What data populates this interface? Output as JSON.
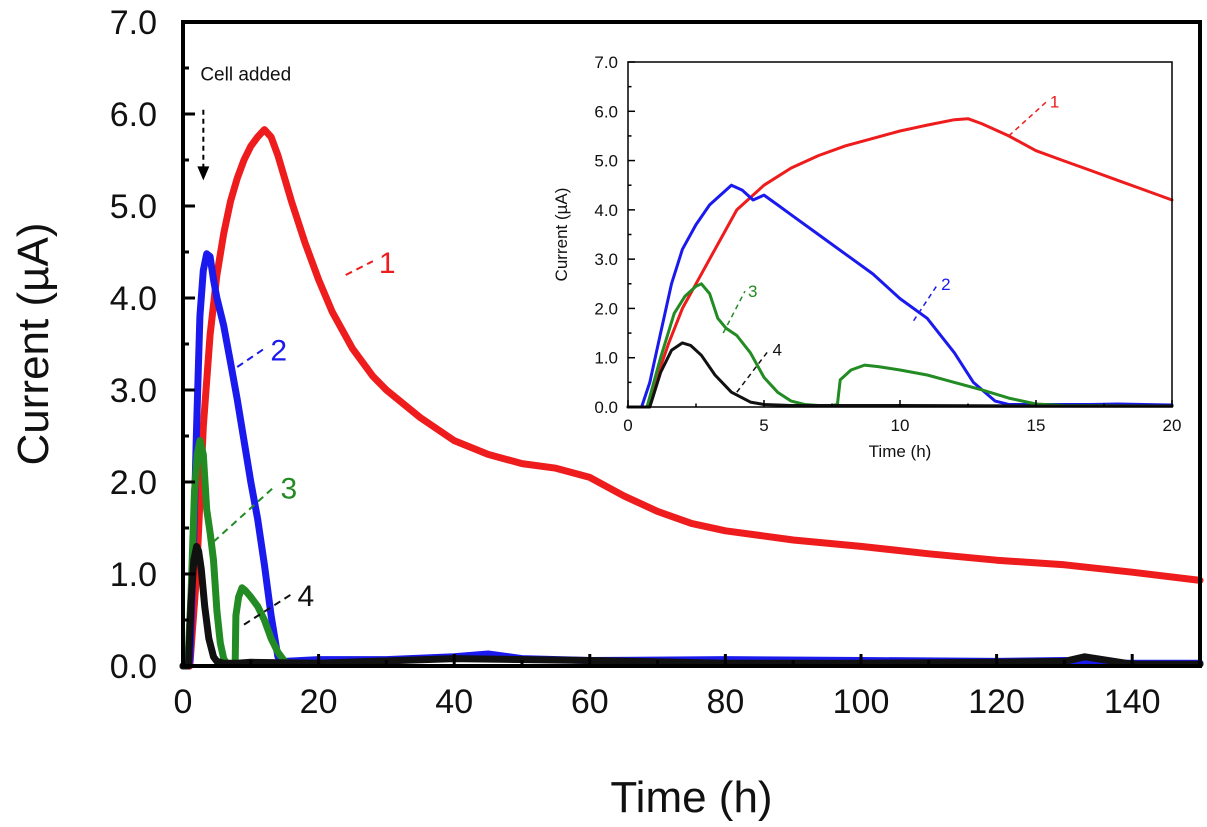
{
  "chart_data": [
    {
      "type": "line",
      "xlabel": "Time (h)",
      "ylabel": "Current (µA)",
      "xlim": [
        0,
        150
      ],
      "ylim": [
        0,
        7
      ],
      "xticks": [
        0,
        20,
        40,
        60,
        80,
        100,
        120,
        140
      ],
      "yticks": [
        0,
        1,
        2,
        3,
        4,
        5,
        6,
        7
      ],
      "xtick_labels": [
        "0",
        "20",
        "40",
        "60",
        "80",
        "100",
        "120",
        "140"
      ],
      "ytick_labels": [
        "0.0",
        "1.0",
        "2.0",
        "3.0",
        "4.0",
        "5.0",
        "6.0",
        "7.0"
      ],
      "annotation": {
        "text": "Cell added",
        "x": 3,
        "y": 5.3
      },
      "series": [
        {
          "name": "1",
          "label": "1",
          "color": "#ee1c1c",
          "x": [
            0,
            1,
            2,
            3,
            4,
            5,
            6,
            7,
            8,
            9,
            10,
            11,
            12,
            13,
            14,
            15,
            16,
            18,
            20,
            22,
            25,
            28,
            30,
            35,
            40,
            45,
            50,
            55,
            60,
            65,
            70,
            75,
            80,
            85,
            90,
            100,
            110,
            120,
            130,
            140,
            150
          ],
          "y": [
            0,
            0,
            1.0,
            2.6,
            3.6,
            4.25,
            4.7,
            5.05,
            5.3,
            5.5,
            5.65,
            5.75,
            5.83,
            5.75,
            5.55,
            5.3,
            5.05,
            4.6,
            4.2,
            3.85,
            3.45,
            3.15,
            3.0,
            2.7,
            2.45,
            2.3,
            2.2,
            2.15,
            2.05,
            1.85,
            1.68,
            1.55,
            1.47,
            1.42,
            1.37,
            1.3,
            1.22,
            1.15,
            1.1,
            1.02,
            0.93
          ],
          "label_pos": [
            24,
            4.25
          ],
          "label_text_pos": [
            28,
            4.4
          ]
        },
        {
          "name": "2",
          "label": "2",
          "color": "#1a1aee",
          "x": [
            0,
            0.5,
            1,
            1.5,
            2,
            2.5,
            3,
            3.5,
            4,
            4.5,
            5,
            6,
            7,
            8,
            9,
            10,
            11,
            12,
            13,
            14,
            15,
            20,
            30,
            40,
            45,
            50,
            60,
            80,
            100,
            120,
            130,
            135,
            150
          ],
          "y": [
            0,
            0,
            0.05,
            1.2,
            2.6,
            3.8,
            4.3,
            4.48,
            4.45,
            4.2,
            4.0,
            3.7,
            3.3,
            2.9,
            2.45,
            2.0,
            1.6,
            1.1,
            0.55,
            0.1,
            0.05,
            0.07,
            0.07,
            0.1,
            0.13,
            0.08,
            0.06,
            0.07,
            0.06,
            0.05,
            0.06,
            0.03,
            0.03
          ],
          "label_pos": [
            8,
            3.25
          ],
          "label_text_pos": [
            12,
            3.45
          ]
        },
        {
          "name": "3",
          "label": "3",
          "color": "#238b23",
          "x": [
            0,
            0.7,
            1.2,
            1.7,
            2.1,
            2.5,
            3.0,
            3.5,
            4.0,
            4.5,
            5.0,
            5.5,
            6.0,
            6.5,
            7.0,
            7.4,
            7.7,
            7.8,
            8.2,
            8.7,
            9.2,
            10,
            11,
            12,
            13,
            14,
            15,
            16
          ],
          "y": [
            0,
            0,
            0.8,
            1.9,
            2.3,
            2.45,
            2.3,
            1.7,
            1.45,
            1.15,
            0.6,
            0.25,
            0.08,
            0.02,
            0.02,
            0.02,
            0.05,
            0.55,
            0.75,
            0.85,
            0.82,
            0.75,
            0.65,
            0.5,
            0.3,
            0.15,
            0.05,
            0.02
          ],
          "label_pos": [
            4.5,
            1.35
          ],
          "label_text_pos": [
            13.5,
            1.95
          ]
        },
        {
          "name": "4",
          "label": "4",
          "color": "#111111",
          "x": [
            0,
            0.8,
            1.2,
            1.6,
            2.0,
            2.3,
            2.7,
            3.2,
            3.8,
            4.5,
            5.0,
            6,
            8,
            10,
            20,
            40,
            60,
            80,
            100,
            120,
            130,
            133,
            140,
            150
          ],
          "y": [
            0,
            0,
            0.7,
            1.15,
            1.3,
            1.25,
            1.05,
            0.65,
            0.3,
            0.1,
            0.05,
            0.03,
            0.03,
            0.04,
            0.03,
            0.08,
            0.06,
            0.03,
            0.03,
            0.04,
            0.05,
            0.1,
            0.02,
            0.02
          ],
          "label_pos": [
            9,
            0.45
          ],
          "label_text_pos": [
            16,
            0.78
          ]
        }
      ]
    },
    {
      "type": "line",
      "subplot": "inset",
      "xlabel": "Time (h)",
      "ylabel": "Current (µA)",
      "xlim": [
        0,
        20
      ],
      "ylim": [
        0,
        7
      ],
      "xticks": [
        0,
        5,
        10,
        15,
        20
      ],
      "yticks": [
        0,
        1,
        2,
        3,
        4,
        5,
        6,
        7
      ],
      "xtick_labels": [
        "0",
        "5",
        "10",
        "15",
        "20"
      ],
      "ytick_labels": [
        "0.0",
        "1.0",
        "2.0",
        "3.0",
        "4.0",
        "5.0",
        "6.0",
        "7.0"
      ],
      "series": [
        {
          "name": "1",
          "label": "1",
          "color": "#ee1c1c",
          "x": [
            0,
            0.7,
            1,
            1.5,
            2,
            2.5,
            3,
            3.5,
            4,
            5,
            6,
            7,
            8,
            9,
            10,
            11,
            12,
            12.5,
            13,
            14,
            15,
            16,
            17,
            18,
            19,
            20
          ],
          "y": [
            0,
            0,
            0.5,
            1.3,
            2.0,
            2.5,
            3.0,
            3.5,
            4.0,
            4.5,
            4.85,
            5.1,
            5.3,
            5.45,
            5.6,
            5.72,
            5.83,
            5.85,
            5.75,
            5.5,
            5.2,
            5.0,
            4.8,
            4.6,
            4.4,
            4.2
          ],
          "label_pos": [
            14,
            5.5
          ],
          "label_text_pos": [
            15.4,
            6.2
          ]
        },
        {
          "name": "2",
          "label": "2",
          "color": "#1a1aee",
          "x": [
            0,
            0.5,
            0.8,
            1.2,
            1.6,
            2.0,
            2.5,
            3.0,
            3.5,
            3.8,
            4.2,
            4.6,
            5.0,
            5.5,
            6.0,
            7.0,
            8.0,
            9.0,
            10.0,
            11.0,
            12.0,
            12.7,
            13.5,
            14.0,
            15.0,
            17.0,
            18.0,
            20.0
          ],
          "y": [
            0,
            0,
            0.5,
            1.5,
            2.5,
            3.2,
            3.7,
            4.1,
            4.35,
            4.5,
            4.4,
            4.2,
            4.3,
            4.1,
            3.9,
            3.5,
            3.1,
            2.7,
            2.2,
            1.8,
            1.1,
            0.5,
            0.12,
            0.05,
            0.05,
            0.05,
            0.06,
            0.04
          ],
          "label_pos": [
            10.5,
            1.75
          ],
          "label_text_pos": [
            11.4,
            2.5
          ]
        },
        {
          "name": "3",
          "label": "3",
          "color": "#238b23",
          "x": [
            0,
            0.7,
            1.2,
            1.7,
            2.1,
            2.5,
            2.7,
            3.0,
            3.3,
            3.6,
            4.0,
            4.5,
            5.0,
            5.5,
            6.0,
            6.5,
            7.0,
            7.4,
            7.7,
            7.8,
            8.2,
            8.7,
            9.2,
            10,
            11,
            12,
            13,
            14,
            15,
            16,
            20
          ],
          "y": [
            0,
            0,
            1.0,
            1.9,
            2.25,
            2.45,
            2.5,
            2.3,
            1.8,
            1.6,
            1.45,
            1.1,
            0.6,
            0.3,
            0.12,
            0.05,
            0.03,
            0.02,
            0.05,
            0.55,
            0.75,
            0.85,
            0.82,
            0.75,
            0.65,
            0.5,
            0.35,
            0.18,
            0.06,
            0.03,
            0.02
          ],
          "label_pos": [
            3.5,
            1.5
          ],
          "label_text_pos": [
            4.3,
            2.35
          ]
        },
        {
          "name": "4",
          "label": "4",
          "color": "#111111",
          "x": [
            0,
            0.8,
            1.2,
            1.6,
            2.0,
            2.3,
            2.7,
            3.2,
            3.8,
            4.5,
            5.0,
            6.0,
            8.0,
            10,
            15,
            20
          ],
          "y": [
            0,
            0,
            0.7,
            1.15,
            1.3,
            1.25,
            1.05,
            0.65,
            0.3,
            0.1,
            0.05,
            0.03,
            0.03,
            0.03,
            0.02,
            0.02
          ],
          "label_pos": [
            4,
            0.3
          ],
          "label_text_pos": [
            5.2,
            1.17
          ]
        }
      ]
    }
  ]
}
